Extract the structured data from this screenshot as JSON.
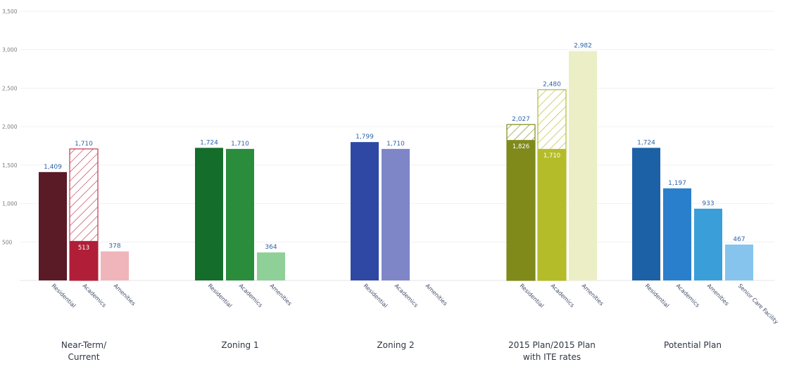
{
  "chart_data": {
    "type": "bar",
    "ylim": [
      0,
      3500
    ],
    "y_ticks": [
      "500",
      "1,000",
      "1,500",
      "2,000",
      "2,500",
      "3,000",
      "3,500"
    ],
    "groups": [
      {
        "label_lines": [
          "Near-Term/",
          "Current"
        ],
        "bars": [
          {
            "category": "Residential",
            "value": 1409,
            "label": "1,409",
            "color": "#5a1a26"
          },
          {
            "category": "Academics",
            "value": 513,
            "label": "513",
            "color": "#b01f37",
            "hatch_value": 1710,
            "hatch_label": "1,710",
            "hatch_color": "#c0394f"
          },
          {
            "category": "Amenities",
            "value": 378,
            "label": "378",
            "color": "#f0b5bb"
          }
        ]
      },
      {
        "label_lines": [
          "Zoning 1"
        ],
        "bars": [
          {
            "category": "Residential",
            "value": 1724,
            "label": "1,724",
            "color": "#146d2a"
          },
          {
            "category": "Academics",
            "value": 1710,
            "label": "1,710",
            "color": "#2a8d3c"
          },
          {
            "category": "Amenities",
            "value": 364,
            "label": "364",
            "color": "#8fcf98"
          }
        ]
      },
      {
        "label_lines": [
          "Zoning 2"
        ],
        "bars": [
          {
            "category": "Residential",
            "value": 1799,
            "label": "1,799",
            "color": "#2e48a4"
          },
          {
            "category": "Academics",
            "value": 1710,
            "label": "1,710",
            "color": "#7e86c8"
          },
          {
            "category": "Amenities",
            "value": 0,
            "label": "",
            "color": "#c9cde9"
          }
        ]
      },
      {
        "label_lines": [
          "2015 Plan/2015 Plan",
          "with ITE rates"
        ],
        "bars": [
          {
            "category": "Residential",
            "value": 1826,
            "label": "1,826",
            "color": "#7f8a1b",
            "inner_label": true,
            "hatch_value": 2027,
            "hatch_label": "2,027",
            "hatch_color": "#7f8a1b"
          },
          {
            "category": "Academics",
            "value": 1710,
            "label": "1,710",
            "color": "#b4bc2a",
            "inner_label": true,
            "hatch_value": 2480,
            "hatch_label": "2,480",
            "hatch_color": "#b4bc2a"
          },
          {
            "category": "Amenities",
            "value": 2982,
            "label": "2,982",
            "color": "#eceec6"
          }
        ]
      },
      {
        "label_lines": [
          "Potential Plan"
        ],
        "bars": [
          {
            "category": "Residential",
            "value": 1724,
            "label": "1,724",
            "color": "#1c60a6"
          },
          {
            "category": "Academics",
            "value": 1197,
            "label": "1,197",
            "color": "#2a7fcc"
          },
          {
            "category": "Amenities",
            "value": 933,
            "label": "933",
            "color": "#3a9ed8"
          },
          {
            "category": "Senior Care Facility",
            "value": 467,
            "label": "467",
            "color": "#86c4ee"
          }
        ]
      }
    ]
  }
}
